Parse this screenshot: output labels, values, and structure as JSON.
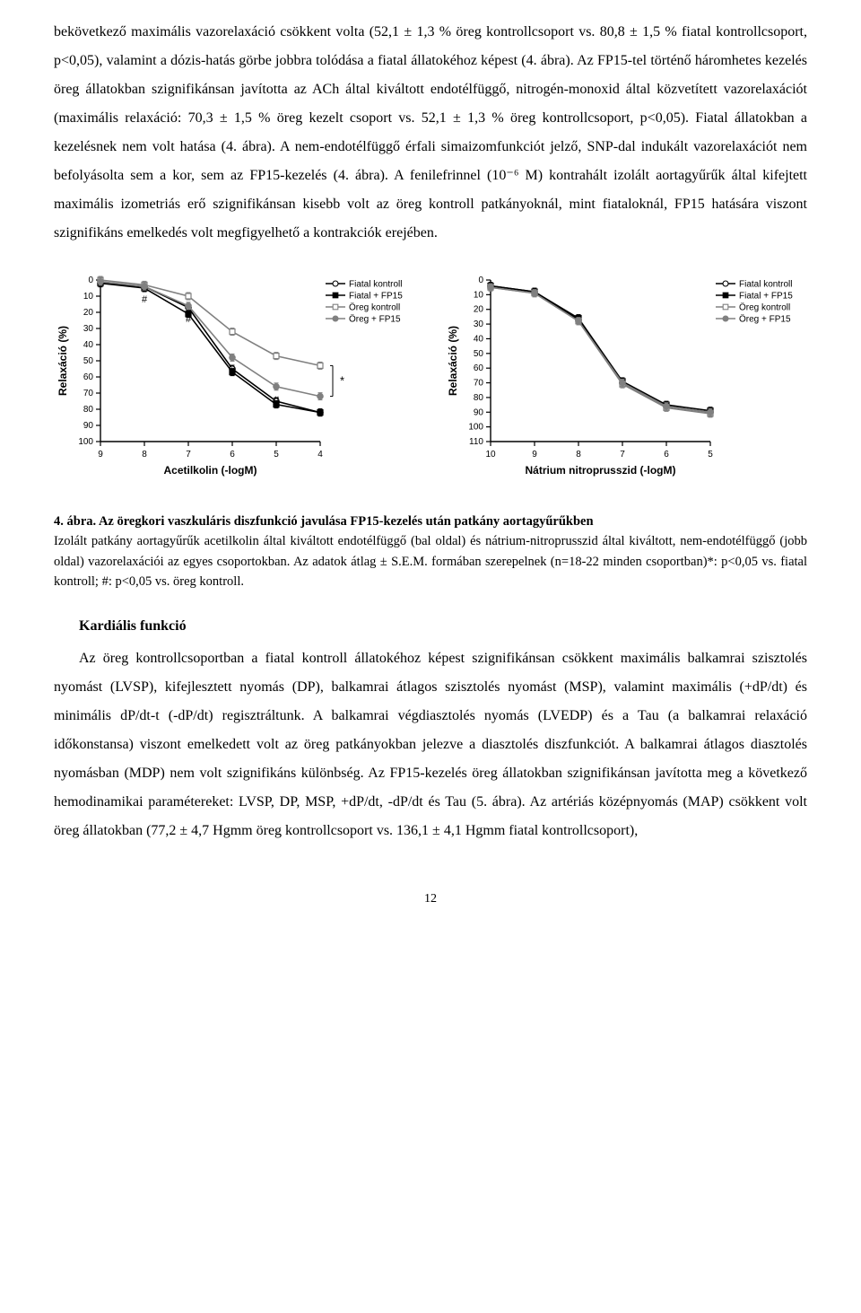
{
  "paragraph1": "bekövetkező maximális vazorelaxáció csökkent volta (52,1 ± 1,3 % öreg kontrollcsoport vs. 80,8 ± 1,5 % fiatal kontrollcsoport, p<0,05), valamint a dózis-hatás görbe jobbra tolódása a fiatal állatokéhoz képest (4. ábra). Az FP15-tel történő háromhetes kezelés öreg állatokban szignifikánsan javította az ACh által kiváltott endotélfüggő, nitrogén-monoxid által közvetített vazorelaxációt (maximális relaxáció: 70,3 ± 1,5 % öreg kezelt csoport vs. 52,1 ± 1,3 % öreg kontrollcsoport, p<0,05). Fiatal állatokban a kezelésnek nem volt hatása (4. ábra). A nem-endotélfüggő érfali simaizomfunkciót jelző, SNP-dal indukált vazorelaxációt nem befolyásolta sem a kor, sem az FP15-kezelés (4. ábra). A fenilefrinnel (10⁻⁶ M) kontrahált izolált aortagyűrűk által kifejtett maximális izometriás erő szignifikánsan kisebb volt az öreg kontroll patkányoknál, mint fiataloknál, FP15 hatására viszont szignifikáns emelkedés volt megfigyelhető a kontrakciók erejében.",
  "charts": {
    "left": {
      "type": "line",
      "ylabel": "Relaxáció (%)",
      "xlabel": "Acetilkolin (-logM)",
      "x_ticks": [
        "9",
        "8",
        "7",
        "6",
        "5",
        "4"
      ],
      "y_ticks": [
        "0",
        "10",
        "20",
        "30",
        "40",
        "50",
        "60",
        "70",
        "80",
        "90",
        "100"
      ],
      "ylim": [
        0,
        100
      ],
      "series": [
        {
          "name": "Fiatal kontroll",
          "color": "#000000",
          "marker": "circle",
          "fill": "#ffffff",
          "values": [
            2,
            4,
            17,
            55,
            75,
            82
          ]
        },
        {
          "name": "Fiatal + FP15",
          "color": "#000000",
          "marker": "square",
          "fill": "#000000",
          "values": [
            2,
            5,
            21,
            57,
            77,
            82
          ]
        },
        {
          "name": "Öreg kontroll",
          "color": "#808080",
          "marker": "square",
          "fill": "#ffffff",
          "values": [
            0,
            3,
            10,
            32,
            47,
            53
          ]
        },
        {
          "name": "Öreg + FP15",
          "color": "#808080",
          "marker": "circle",
          "fill": "#808080",
          "values": [
            1,
            4,
            16,
            48,
            66,
            72
          ]
        }
      ],
      "annotations": [
        "#",
        "#",
        "#",
        "#",
        "#",
        "*"
      ],
      "background": "#ffffff",
      "line_width": 1.6
    },
    "right": {
      "type": "line",
      "ylabel": "Relaxáció (%)",
      "xlabel": "Nátrium nitroprusszid (-logM)",
      "x_ticks": [
        "10",
        "9",
        "8",
        "7",
        "6",
        "5"
      ],
      "y_ticks": [
        "0",
        "10",
        "20",
        "30",
        "40",
        "50",
        "60",
        "70",
        "80",
        "90",
        "100",
        "110"
      ],
      "ylim": [
        0,
        110
      ],
      "series": [
        {
          "name": "Fiatal kontroll",
          "color": "#000000",
          "marker": "circle",
          "fill": "#ffffff",
          "values": [
            4,
            8,
            27,
            70,
            86,
            90
          ]
        },
        {
          "name": "Fiatal + FP15",
          "color": "#000000",
          "marker": "square",
          "fill": "#000000",
          "values": [
            4,
            8,
            26,
            69,
            85,
            89
          ]
        },
        {
          "name": "Öreg kontroll",
          "color": "#808080",
          "marker": "square",
          "fill": "#ffffff",
          "values": [
            5,
            9,
            28,
            71,
            87,
            91
          ]
        },
        {
          "name": "Öreg + FP15",
          "color": "#808080",
          "marker": "circle",
          "fill": "#808080",
          "values": [
            5,
            9,
            28,
            70,
            86,
            90
          ]
        }
      ],
      "background": "#ffffff",
      "line_width": 1.6
    }
  },
  "caption": {
    "title": "4. ábra. Az öregkori vaszkuláris diszfunkció javulása FP15-kezelés után patkány aortagyűrűkben",
    "body": "Izolált patkány aortagyűrűk acetilkolin által kiváltott endotélfüggő (bal oldal) és nátrium-nitroprusszid által kiváltott, nem-endotélfüggő (jobb oldal) vazorelaxációi az egyes csoportokban. Az adatok átlag ± S.E.M. formában szerepelnek (n=18-22 minden csoportban)*: p<0,05 vs. fiatal kontroll; #: p<0,05 vs. öreg kontroll."
  },
  "section_heading": "Kardiális funkció",
  "paragraph2": "Az öreg kontrollcsoportban a fiatal kontroll állatokéhoz képest szignifikánsan csökkent maximális balkamrai szisztolés nyomást (LVSP), kifejlesztett nyomás (DP), balkamrai átlagos szisztolés nyomást (MSP), valamint maximális (+dP/dt) és minimális dP/dt-t (-dP/dt) regisztráltunk. A balkamrai végdiasztolés nyomás (LVEDP) és a Tau (a balkamrai relaxáció időkonstansa) viszont emelkedett volt az öreg patkányokban jelezve a diasztolés diszfunkciót. A balkamrai átlagos diasztolés nyomásban (MDP) nem volt szignifikáns különbség. Az FP15-kezelés öreg állatokban szignifikánsan javította meg a következő hemodinamikai paramétereket: LVSP, DP, MSP, +dP/dt, -dP/dt és Tau (5. ábra). Az artériás középnyomás (MAP) csökkent volt öreg állatokban (77,2 ± 4,7 Hgmm öreg kontrollcsoport vs. 136,1 ± 4,1 Hgmm fiatal kontrollcsoport),",
  "page_number": "12"
}
